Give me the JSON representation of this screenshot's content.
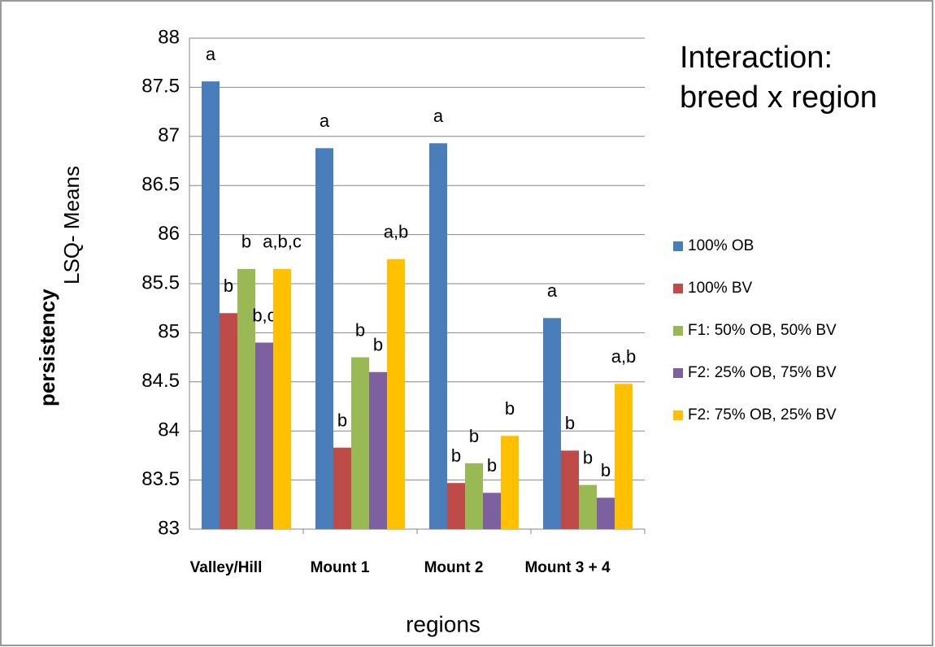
{
  "chart_data": {
    "type": "bar",
    "title_lines": [
      "Interaction:",
      "breed x region"
    ],
    "ylabel_bold": "persistency",
    "ylabel": "LSQ- Means",
    "xlabel": "regions",
    "categories": [
      "Valley/Hill",
      "Mount 1",
      "Mount 2",
      "Mount 3 + 4"
    ],
    "series": [
      {
        "name": "100% OB",
        "color": "#4a7ebb",
        "values": [
          87.56,
          86.88,
          86.93,
          85.15
        ],
        "letters": [
          "a",
          "a",
          "a",
          "a"
        ]
      },
      {
        "name": "100% BV",
        "color": "#be4b48",
        "values": [
          85.2,
          83.83,
          83.47,
          83.8
        ],
        "letters": [
          "b",
          "b",
          "b",
          "b"
        ]
      },
      {
        "name": "F1: 50% OB, 50% BV",
        "color": "#98b954",
        "values": [
          85.65,
          84.75,
          83.67,
          83.45
        ],
        "letters": [
          "b",
          "b",
          "b",
          "b"
        ]
      },
      {
        "name": "F2: 25% OB, 75% BV",
        "color": "#7d60a0",
        "values": [
          84.9,
          84.6,
          83.37,
          83.32
        ],
        "letters": [
          "b,c",
          "b",
          "b",
          "b"
        ]
      },
      {
        "name": "F2: 75% OB, 25% BV",
        "color": "#ffc000",
        "values": [
          85.65,
          85.75,
          83.95,
          84.48
        ],
        "letters": [
          "a,b,c",
          "a,b",
          "b",
          "a,b"
        ]
      }
    ],
    "ylim": [
      83,
      88
    ],
    "yticks": [
      83,
      {
        "value": 83.5,
        "label": "83.5"
      },
      84,
      {
        "value": 84.5,
        "label": "84.5"
      },
      85,
      {
        "value": 85.5,
        "label": "85.5"
      },
      86,
      {
        "value": 86.5,
        "label": "86.5"
      },
      87,
      {
        "value": 87.5,
        "label": "87.5"
      },
      88
    ],
    "grid": true
  }
}
